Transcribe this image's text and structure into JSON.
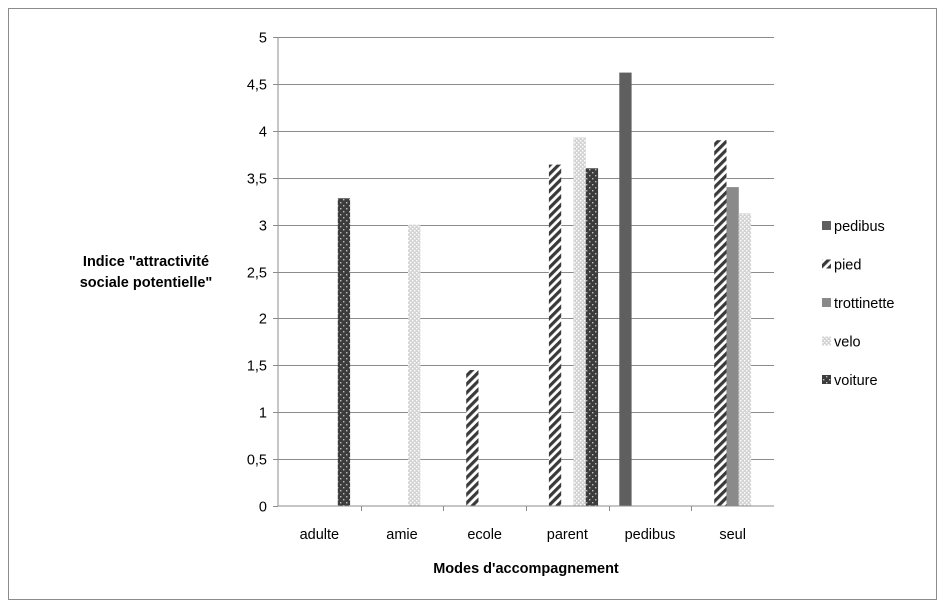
{
  "chart_data": {
    "type": "bar",
    "xlabel": "Modes d'accompagnement",
    "ylabel_lines": [
      "Indice \"attractivité",
      "sociale potentielle\""
    ],
    "categories": [
      "adulte",
      "amie",
      "ecole",
      "parent",
      "pedibus",
      "seul"
    ],
    "y_ticks": [
      "0",
      "0,5",
      "1",
      "1,5",
      "2",
      "2,5",
      "3",
      "3,5",
      "4",
      "4,5",
      "5"
    ],
    "ylim": [
      0,
      5
    ],
    "grid": "horizontal",
    "legend_position": "right",
    "series": [
      {
        "name": "pedibus",
        "pattern": "solid-dark",
        "color": "#5f5f5f",
        "values": [
          null,
          null,
          null,
          null,
          4.62,
          null
        ]
      },
      {
        "name": "pied",
        "pattern": "diagonal-stripes",
        "color": "#3a3a3a",
        "values": [
          null,
          null,
          1.45,
          3.64,
          null,
          3.9
        ]
      },
      {
        "name": "trottinette",
        "pattern": "solid-medium",
        "color": "#8a8a8a",
        "values": [
          null,
          null,
          null,
          null,
          null,
          3.4
        ]
      },
      {
        "name": "velo",
        "pattern": "light-dotted",
        "color": "#d4d4d4",
        "values": [
          null,
          3.0,
          null,
          3.93,
          null,
          3.12
        ]
      },
      {
        "name": "voiture",
        "pattern": "dark-dotted",
        "color": "#3c3c3c",
        "values": [
          3.28,
          null,
          null,
          3.6,
          null,
          null
        ]
      }
    ]
  }
}
